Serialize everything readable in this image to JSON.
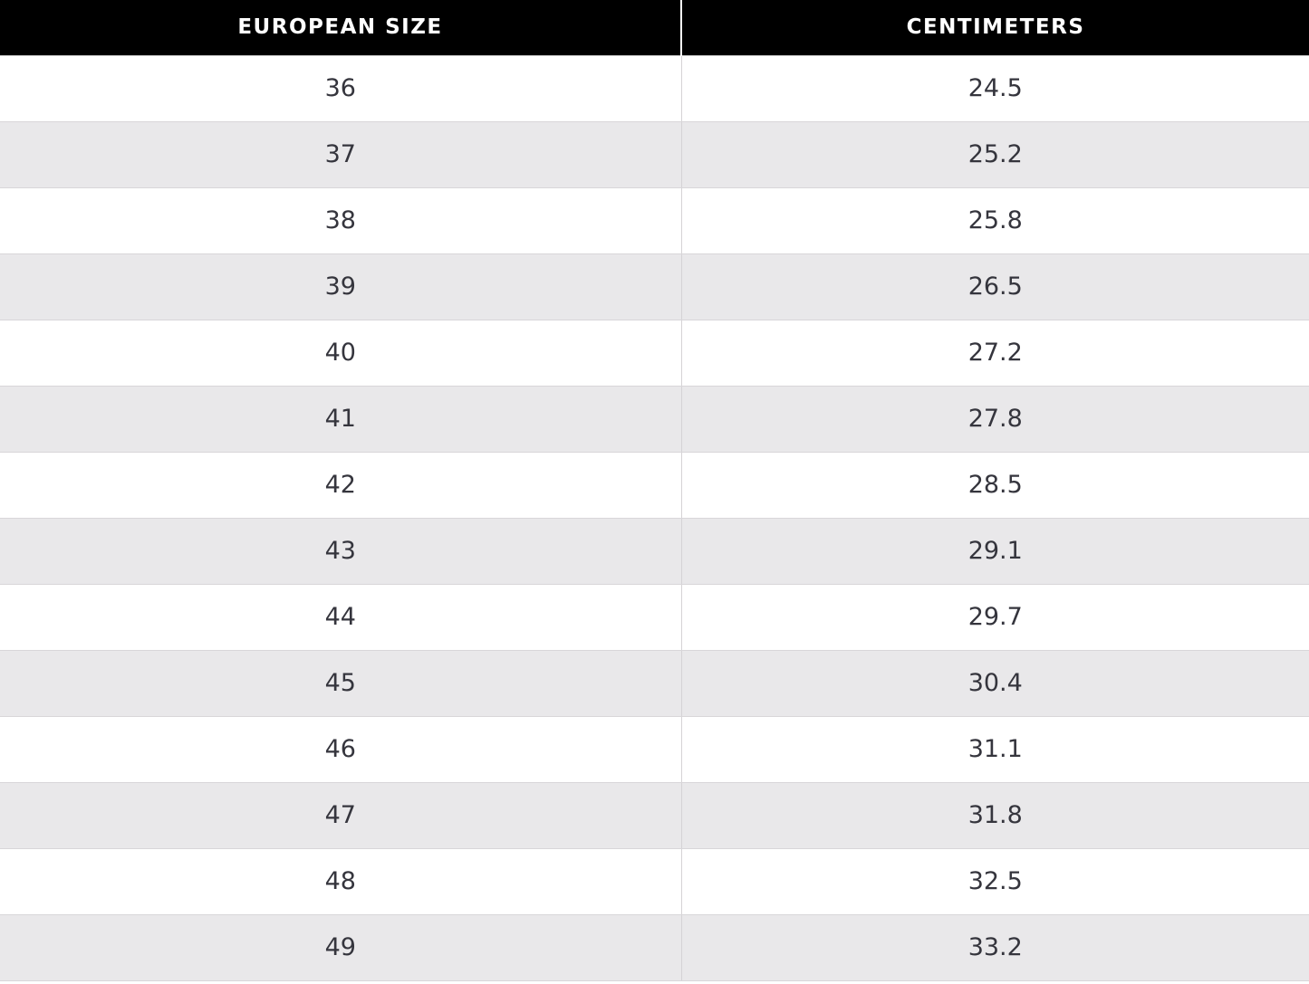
{
  "table": {
    "columns": [
      {
        "label": "EUROPEAN SIZE"
      },
      {
        "label": "CENTIMETERS"
      }
    ],
    "rows": [
      {
        "european_size": "36",
        "centimeters": "24.5"
      },
      {
        "european_size": "37",
        "centimeters": "25.2"
      },
      {
        "european_size": "38",
        "centimeters": "25.8"
      },
      {
        "european_size": "39",
        "centimeters": "26.5"
      },
      {
        "european_size": "40",
        "centimeters": "27.2"
      },
      {
        "european_size": "41",
        "centimeters": "27.8"
      },
      {
        "european_size": "42",
        "centimeters": "28.5"
      },
      {
        "european_size": "43",
        "centimeters": "29.1"
      },
      {
        "european_size": "44",
        "centimeters": "29.7"
      },
      {
        "european_size": "45",
        "centimeters": "30.4"
      },
      {
        "european_size": "46",
        "centimeters": "31.1"
      },
      {
        "european_size": "47",
        "centimeters": "31.8"
      },
      {
        "european_size": "48",
        "centimeters": "32.5"
      },
      {
        "european_size": "49",
        "centimeters": "33.2"
      }
    ]
  },
  "colors": {
    "header_bg": "#000000",
    "header_text": "#ffffff",
    "row_bg": "#ffffff",
    "row_alt_bg": "#e9e8ea",
    "cell_text": "#35353d",
    "column_divider": "#d5d3d6",
    "row_divider": "#d8d6d9"
  },
  "chart_data": {
    "type": "table",
    "columns": [
      "EUROPEAN SIZE",
      "CENTIMETERS"
    ],
    "rows": [
      [
        36,
        24.5
      ],
      [
        37,
        25.2
      ],
      [
        38,
        25.8
      ],
      [
        39,
        26.5
      ],
      [
        40,
        27.2
      ],
      [
        41,
        27.8
      ],
      [
        42,
        28.5
      ],
      [
        43,
        29.1
      ],
      [
        44,
        29.7
      ],
      [
        45,
        30.4
      ],
      [
        46,
        31.1
      ],
      [
        47,
        31.8
      ],
      [
        48,
        32.5
      ],
      [
        49,
        33.2
      ]
    ]
  }
}
